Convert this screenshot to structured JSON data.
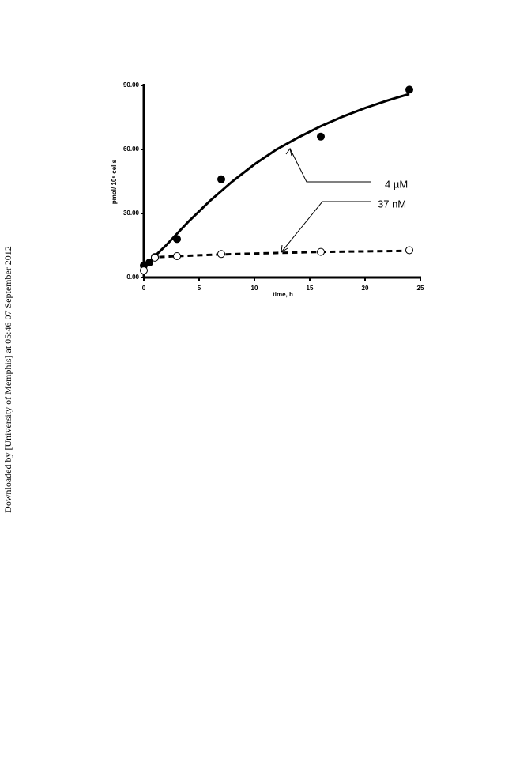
{
  "side_note": "Downloaded by [University of Memphis] at 05:46 07 September 2012",
  "chart_data": {
    "type": "scatter",
    "x_label": "time, h",
    "y_label": "pmol/ 10⁶ cells",
    "xlim": [
      0,
      25
    ],
    "xticks": [
      0,
      5,
      10,
      15,
      20,
      25
    ],
    "ylim": [
      0,
      90
    ],
    "yticks": [
      {
        "value": 0,
        "label": "0.00"
      },
      {
        "value": 30,
        "label": "30.00"
      },
      {
        "value": 60,
        "label": "60.00"
      },
      {
        "value": 90,
        "label": "90.00"
      }
    ],
    "series": [
      {
        "name": "4 µM",
        "color": "#000000",
        "marker": "filled",
        "x": [
          0,
          0.5,
          1,
          3,
          7,
          16,
          24
        ],
        "values": [
          5.6,
          7,
          9.6,
          18,
          46,
          66,
          88
        ],
        "fit": {
          "line_style": "solid",
          "x": [
            0,
            2,
            4,
            6,
            8,
            10,
            12,
            14,
            16,
            18,
            20,
            22,
            24
          ],
          "values": [
            5,
            15,
            26,
            36,
            45,
            53,
            60,
            65.7,
            70.9,
            75.4,
            79.4,
            82.9,
            86
          ]
        }
      },
      {
        "name": "37 nM",
        "color": "#000000",
        "marker": "open",
        "x": [
          0,
          1,
          3,
          7,
          16,
          24
        ],
        "values": [
          3.3,
          9.3,
          10,
          11,
          12,
          12.8
        ],
        "fit": {
          "line_style": "dashed",
          "x": [
            0,
            1,
            3,
            7,
            12,
            16,
            24
          ],
          "values": [
            5,
            9.5,
            10,
            10.8,
            11.5,
            12,
            12.5
          ]
        }
      }
    ]
  }
}
